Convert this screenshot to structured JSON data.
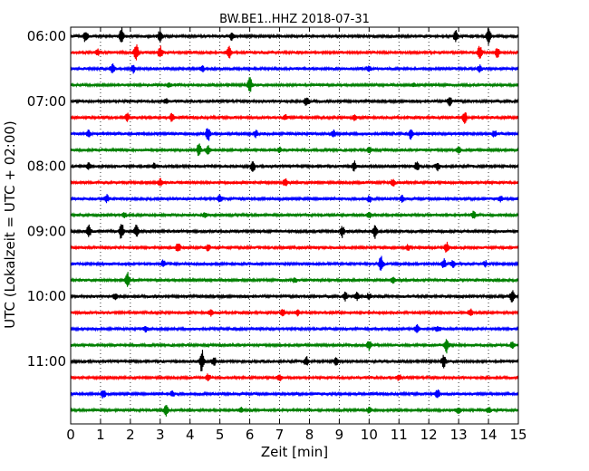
{
  "chart_data": {
    "type": "line",
    "title": "BW.BE1..HHZ 2018-07-31",
    "xlabel": "Zeit  [min]",
    "ylabel": "UTC (Lokalzeit = UTC + 02:00)",
    "xlim": [
      0,
      15
    ],
    "x_ticks": [
      "0",
      "1",
      "2",
      "3",
      "4",
      "5",
      "6",
      "7",
      "8",
      "9",
      "10",
      "11",
      "12",
      "13",
      "14",
      "15"
    ],
    "y_tick_labels": [
      "06:00",
      "07:00",
      "08:00",
      "09:00",
      "10:00",
      "11:00"
    ],
    "grid": "vertical-dotted",
    "trace_colors": [
      "#000000",
      "#ff0000",
      "#0000ff",
      "#008000"
    ],
    "traces": [
      {
        "start": "06:00",
        "color": "#000000",
        "events": [
          [
            0.5,
            1.0
          ],
          [
            1.7,
            1.3
          ],
          [
            3.0,
            1.1
          ],
          [
            5.4,
            0.6
          ],
          [
            12.9,
            1.0
          ],
          [
            14.0,
            1.3
          ]
        ]
      },
      {
        "start": "06:15",
        "color": "#ff0000",
        "events": [
          [
            0.9,
            0.5
          ],
          [
            2.2,
            1.4
          ],
          [
            3.0,
            1.0
          ],
          [
            5.3,
            1.0
          ],
          [
            13.7,
            1.2
          ],
          [
            14.3,
            0.8
          ]
        ]
      },
      {
        "start": "06:30",
        "color": "#0000ff",
        "events": [
          [
            1.4,
            0.8
          ],
          [
            2.1,
            0.6
          ],
          [
            4.4,
            0.5
          ],
          [
            10.0,
            0.5
          ],
          [
            13.7,
            0.5
          ]
        ]
      },
      {
        "start": "06:45",
        "color": "#008000",
        "events": [
          [
            6.0,
            1.2
          ],
          [
            3.3,
            0.3
          ],
          [
            11.5,
            0.3
          ]
        ]
      },
      {
        "start": "07:00",
        "color": "#000000",
        "events": [
          [
            7.9,
            0.7
          ],
          [
            12.7,
            0.7
          ],
          [
            3.2,
            0.3
          ]
        ]
      },
      {
        "start": "07:15",
        "color": "#ff0000",
        "events": [
          [
            1.9,
            0.6
          ],
          [
            3.4,
            0.7
          ],
          [
            7.2,
            0.4
          ],
          [
            13.2,
            1.0
          ],
          [
            9.5,
            0.4
          ]
        ]
      },
      {
        "start": "07:30",
        "color": "#0000ff",
        "events": [
          [
            0.6,
            0.5
          ],
          [
            4.6,
            1.2
          ],
          [
            6.2,
            0.5
          ],
          [
            8.8,
            0.6
          ],
          [
            11.4,
            0.8
          ],
          [
            14.2,
            0.5
          ]
        ]
      },
      {
        "start": "07:45",
        "color": "#008000",
        "events": [
          [
            4.3,
            1.0
          ],
          [
            4.6,
            0.8
          ],
          [
            7.0,
            0.4
          ],
          [
            10.0,
            0.5
          ],
          [
            13.0,
            0.6
          ]
        ]
      },
      {
        "start": "08:00",
        "color": "#000000",
        "events": [
          [
            0.6,
            0.5
          ],
          [
            2.8,
            0.4
          ],
          [
            6.1,
            0.9
          ],
          [
            9.5,
            0.8
          ],
          [
            11.6,
            0.8
          ],
          [
            12.3,
            0.6
          ]
        ]
      },
      {
        "start": "08:15",
        "color": "#ff0000",
        "events": [
          [
            3.0,
            0.6
          ],
          [
            7.2,
            0.7
          ],
          [
            10.8,
            0.6
          ]
        ]
      },
      {
        "start": "08:30",
        "color": "#0000ff",
        "events": [
          [
            1.2,
            0.6
          ],
          [
            5.0,
            0.6
          ],
          [
            10.0,
            0.5
          ],
          [
            11.1,
            0.5
          ],
          [
            14.4,
            0.4
          ]
        ]
      },
      {
        "start": "08:45",
        "color": "#008000",
        "events": [
          [
            1.8,
            0.4
          ],
          [
            4.5,
            0.4
          ],
          [
            10.0,
            0.4
          ],
          [
            13.5,
            0.6
          ]
        ]
      },
      {
        "start": "09:00",
        "color": "#000000",
        "events": [
          [
            0.6,
            1.0
          ],
          [
            1.7,
            1.4
          ],
          [
            2.2,
            1.0
          ],
          [
            9.1,
            0.9
          ],
          [
            10.2,
            1.1
          ]
        ]
      },
      {
        "start": "09:15",
        "color": "#ff0000",
        "events": [
          [
            3.6,
            0.8
          ],
          [
            4.6,
            0.5
          ],
          [
            11.3,
            0.5
          ],
          [
            12.6,
            0.8
          ]
        ]
      },
      {
        "start": "09:30",
        "color": "#0000ff",
        "events": [
          [
            3.1,
            0.6
          ],
          [
            10.4,
            1.3
          ],
          [
            12.5,
            0.8
          ],
          [
            12.8,
            0.6
          ],
          [
            13.9,
            0.4
          ]
        ]
      },
      {
        "start": "09:45",
        "color": "#008000",
        "events": [
          [
            1.9,
            1.2
          ],
          [
            7.5,
            0.4
          ],
          [
            10.8,
            0.5
          ]
        ]
      },
      {
        "start": "10:00",
        "color": "#000000",
        "events": [
          [
            1.5,
            0.5
          ],
          [
            9.2,
            0.7
          ],
          [
            9.6,
            0.6
          ],
          [
            10.0,
            0.5
          ],
          [
            14.8,
            1.0
          ]
        ]
      },
      {
        "start": "10:15",
        "color": "#ff0000",
        "events": [
          [
            4.7,
            0.5
          ],
          [
            7.1,
            0.5
          ],
          [
            7.6,
            0.5
          ],
          [
            13.4,
            0.6
          ]
        ]
      },
      {
        "start": "10:30",
        "color": "#0000ff",
        "events": [
          [
            2.5,
            0.4
          ],
          [
            11.6,
            0.6
          ],
          [
            12.3,
            0.4
          ]
        ]
      },
      {
        "start": "10:45",
        "color": "#008000",
        "events": [
          [
            10.0,
            0.8
          ],
          [
            12.6,
            1.2
          ],
          [
            14.8,
            0.5
          ]
        ]
      },
      {
        "start": "11:00",
        "color": "#000000",
        "events": [
          [
            4.4,
            1.9
          ],
          [
            4.8,
            0.7
          ],
          [
            7.9,
            0.8
          ],
          [
            8.9,
            0.6
          ],
          [
            12.5,
            1.0
          ]
        ]
      },
      {
        "start": "11:15",
        "color": "#ff0000",
        "events": [
          [
            4.6,
            0.6
          ],
          [
            7.0,
            0.5
          ],
          [
            11.0,
            0.5
          ]
        ]
      },
      {
        "start": "11:30",
        "color": "#0000ff",
        "events": [
          [
            1.1,
            0.7
          ],
          [
            3.4,
            0.4
          ],
          [
            12.3,
            0.8
          ]
        ]
      },
      {
        "start": "11:45",
        "color": "#008000",
        "events": [
          [
            3.2,
            1.0
          ],
          [
            5.7,
            0.4
          ],
          [
            10.0,
            0.4
          ],
          [
            13.0,
            0.5
          ],
          [
            14.0,
            0.5
          ]
        ]
      }
    ]
  }
}
